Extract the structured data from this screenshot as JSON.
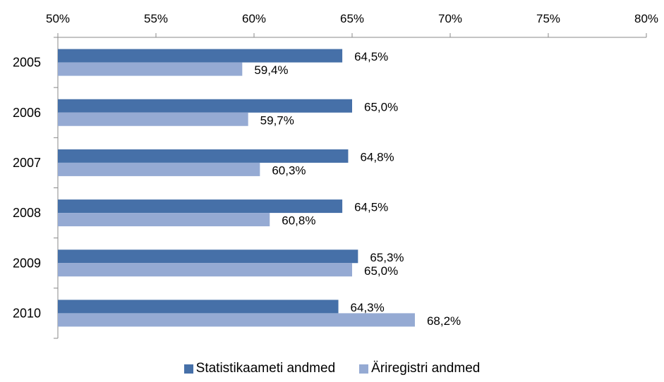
{
  "chart_data": {
    "type": "bar",
    "orientation": "horizontal",
    "categories": [
      "2005",
      "2006",
      "2007",
      "2008",
      "2009",
      "2010"
    ],
    "series": [
      {
        "name": "Statistikaameti andmed",
        "color": "#4670A8",
        "values": [
          64.5,
          65.0,
          64.8,
          64.5,
          65.3,
          64.3
        ],
        "labels": [
          "64,5%",
          "65,0%",
          "64,8%",
          "64,5%",
          "65,3%",
          "64,3%"
        ]
      },
      {
        "name": "Äriregistri andmed",
        "color": "#95AAD3",
        "values": [
          59.4,
          59.7,
          60.3,
          60.8,
          65.0,
          68.2
        ],
        "labels": [
          "59,4%",
          "59,7%",
          "60,3%",
          "60,8%",
          "65,0%",
          "68,2%"
        ]
      }
    ],
    "xlim": [
      50,
      80
    ],
    "x_ticks": [
      50,
      55,
      60,
      65,
      70,
      75,
      80
    ],
    "x_tick_labels": [
      "50%",
      "55%",
      "60%",
      "65%",
      "70%",
      "75%",
      "80%"
    ],
    "x_axis_position": "top",
    "grid": false,
    "legend_position": "bottom"
  }
}
